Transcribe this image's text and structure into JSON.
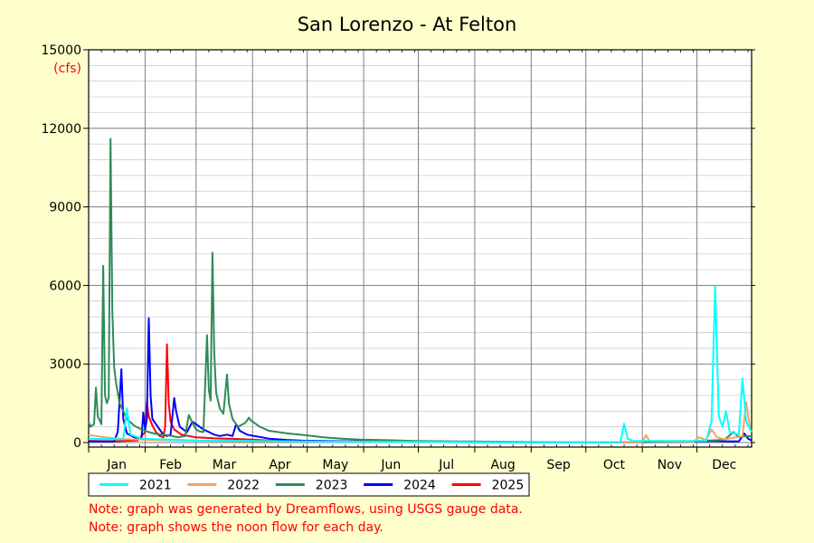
{
  "chart_data": {
    "type": "line",
    "title": "San Lorenzo - At Felton",
    "ylabel_unit": "(cfs)",
    "ylim": [
      0,
      15000
    ],
    "yticks": [
      "0",
      "3000",
      "6000",
      "9000",
      "12000",
      "15000"
    ],
    "months": [
      "Jan",
      "Feb",
      "Mar",
      "Apr",
      "May",
      "Jun",
      "Jul",
      "Aug",
      "Sep",
      "Oct",
      "Nov",
      "Dec"
    ],
    "x_unit": "day of year",
    "grid": true,
    "legend_position": "bottom",
    "series": [
      {
        "name": "2021",
        "color": "#00ffff",
        "points": [
          [
            1,
            150
          ],
          [
            20,
            120
          ],
          [
            22,
            1300
          ],
          [
            24,
            300
          ],
          [
            30,
            150
          ],
          [
            60,
            80
          ],
          [
            120,
            40
          ],
          [
            180,
            25
          ],
          [
            240,
            15
          ],
          [
            270,
            10
          ],
          [
            293,
            20
          ],
          [
            295,
            720
          ],
          [
            297,
            150
          ],
          [
            300,
            60
          ],
          [
            340,
            60
          ],
          [
            343,
            800
          ],
          [
            345,
            5950
          ],
          [
            347,
            1000
          ],
          [
            349,
            600
          ],
          [
            351,
            1200
          ],
          [
            353,
            400
          ],
          [
            358,
            300
          ],
          [
            360,
            2450
          ],
          [
            362,
            800
          ],
          [
            365,
            400
          ]
        ]
      },
      {
        "name": "2022",
        "color": "#f4a460",
        "points": [
          [
            1,
            280
          ],
          [
            5,
            250
          ],
          [
            10,
            200
          ],
          [
            20,
            130
          ],
          [
            40,
            90
          ],
          [
            70,
            60
          ],
          [
            120,
            35
          ],
          [
            180,
            20
          ],
          [
            240,
            10
          ],
          [
            300,
            8
          ],
          [
            305,
            20
          ],
          [
            307,
            280
          ],
          [
            309,
            60
          ],
          [
            320,
            40
          ],
          [
            333,
            30
          ],
          [
            336,
            200
          ],
          [
            340,
            100
          ],
          [
            343,
            500
          ],
          [
            346,
            200
          ],
          [
            350,
            120
          ],
          [
            360,
            250
          ],
          [
            362,
            1550
          ],
          [
            364,
            600
          ]
        ]
      },
      {
        "name": "2023",
        "color": "#2e8b57",
        "points": [
          [
            1,
            800
          ],
          [
            2,
            600
          ],
          [
            4,
            700
          ],
          [
            5,
            2100
          ],
          [
            6,
            1000
          ],
          [
            8,
            700
          ],
          [
            9,
            6750
          ],
          [
            10,
            1800
          ],
          [
            11,
            1500
          ],
          [
            12,
            1700
          ],
          [
            13,
            11600
          ],
          [
            14,
            5000
          ],
          [
            15,
            2900
          ],
          [
            16,
            2300
          ],
          [
            18,
            1500
          ],
          [
            22,
            900
          ],
          [
            26,
            650
          ],
          [
            30,
            500
          ],
          [
            34,
            400
          ],
          [
            38,
            330
          ],
          [
            42,
            300
          ],
          [
            46,
            260
          ],
          [
            50,
            200
          ],
          [
            54,
            250
          ],
          [
            56,
            1050
          ],
          [
            58,
            750
          ],
          [
            60,
            500
          ],
          [
            62,
            420
          ],
          [
            64,
            400
          ],
          [
            66,
            4100
          ],
          [
            67,
            2000
          ],
          [
            68,
            1600
          ],
          [
            69,
            7250
          ],
          [
            70,
            3400
          ],
          [
            71,
            1900
          ],
          [
            73,
            1300
          ],
          [
            75,
            1100
          ],
          [
            77,
            2600
          ],
          [
            78,
            1500
          ],
          [
            80,
            900
          ],
          [
            83,
            600
          ],
          [
            87,
            750
          ],
          [
            89,
            950
          ],
          [
            90,
            850
          ],
          [
            95,
            600
          ],
          [
            100,
            450
          ],
          [
            110,
            350
          ],
          [
            120,
            280
          ],
          [
            130,
            200
          ],
          [
            140,
            150
          ],
          [
            150,
            110
          ],
          [
            165,
            90
          ],
          [
            180,
            60
          ],
          [
            210,
            40
          ],
          [
            240,
            25
          ],
          [
            270,
            15
          ],
          [
            300,
            15
          ],
          [
            320,
            20
          ],
          [
            335,
            60
          ],
          [
            350,
            100
          ],
          [
            355,
            400
          ],
          [
            358,
            200
          ],
          [
            362,
            250
          ],
          [
            365,
            230
          ]
        ]
      },
      {
        "name": "2024",
        "color": "#0000ff",
        "points": [
          [
            1,
            50
          ],
          [
            10,
            40
          ],
          [
            15,
            50
          ],
          [
            17,
            400
          ],
          [
            19,
            2800
          ],
          [
            20,
            900
          ],
          [
            22,
            350
          ],
          [
            26,
            200
          ],
          [
            30,
            140
          ],
          [
            31,
            1150
          ],
          [
            32,
            500
          ],
          [
            33,
            900
          ],
          [
            34,
            4750
          ],
          [
            35,
            1800
          ],
          [
            36,
            900
          ],
          [
            38,
            700
          ],
          [
            40,
            500
          ],
          [
            42,
            300
          ],
          [
            44,
            250
          ],
          [
            46,
            300
          ],
          [
            48,
            1700
          ],
          [
            49,
            1200
          ],
          [
            51,
            600
          ],
          [
            55,
            400
          ],
          [
            58,
            800
          ],
          [
            61,
            650
          ],
          [
            64,
            500
          ],
          [
            67,
            400
          ],
          [
            70,
            300
          ],
          [
            73,
            250
          ],
          [
            77,
            300
          ],
          [
            80,
            250
          ],
          [
            82,
            700
          ],
          [
            84,
            450
          ],
          [
            88,
            300
          ],
          [
            92,
            250
          ],
          [
            96,
            200
          ],
          [
            100,
            150
          ],
          [
            110,
            100
          ],
          [
            120,
            70
          ],
          [
            150,
            40
          ],
          [
            180,
            25
          ],
          [
            210,
            15
          ],
          [
            240,
            10
          ],
          [
            270,
            8
          ],
          [
            300,
            10
          ],
          [
            320,
            20
          ],
          [
            335,
            40
          ],
          [
            345,
            60
          ],
          [
            350,
            50
          ],
          [
            358,
            40
          ],
          [
            361,
            350
          ],
          [
            363,
            150
          ],
          [
            365,
            80
          ]
        ]
      },
      {
        "name": "2025",
        "color": "#ff0000",
        "points": [
          [
            1,
            60
          ],
          [
            15,
            50
          ],
          [
            28,
            80
          ],
          [
            32,
            400
          ],
          [
            33,
            1550
          ],
          [
            34,
            1000
          ],
          [
            36,
            650
          ],
          [
            38,
            400
          ],
          [
            40,
            250
          ],
          [
            42,
            200
          ],
          [
            43,
            600
          ],
          [
            44,
            3750
          ],
          [
            45,
            1500
          ],
          [
            46,
            800
          ],
          [
            48,
            500
          ],
          [
            52,
            300
          ],
          [
            56,
            250
          ],
          [
            60,
            200
          ],
          [
            65,
            180
          ],
          [
            70,
            160
          ],
          [
            80,
            140
          ],
          [
            90,
            110
          ],
          [
            100,
            80
          ],
          [
            120,
            60
          ],
          [
            140,
            50
          ],
          [
            160,
            40
          ],
          [
            180,
            30
          ],
          [
            185,
            25
          ]
        ]
      }
    ],
    "notes": [
      "Note: graph was generated by Dreamflows, using USGS gauge data.",
      "Note: graph shows the noon flow for each day."
    ]
  }
}
